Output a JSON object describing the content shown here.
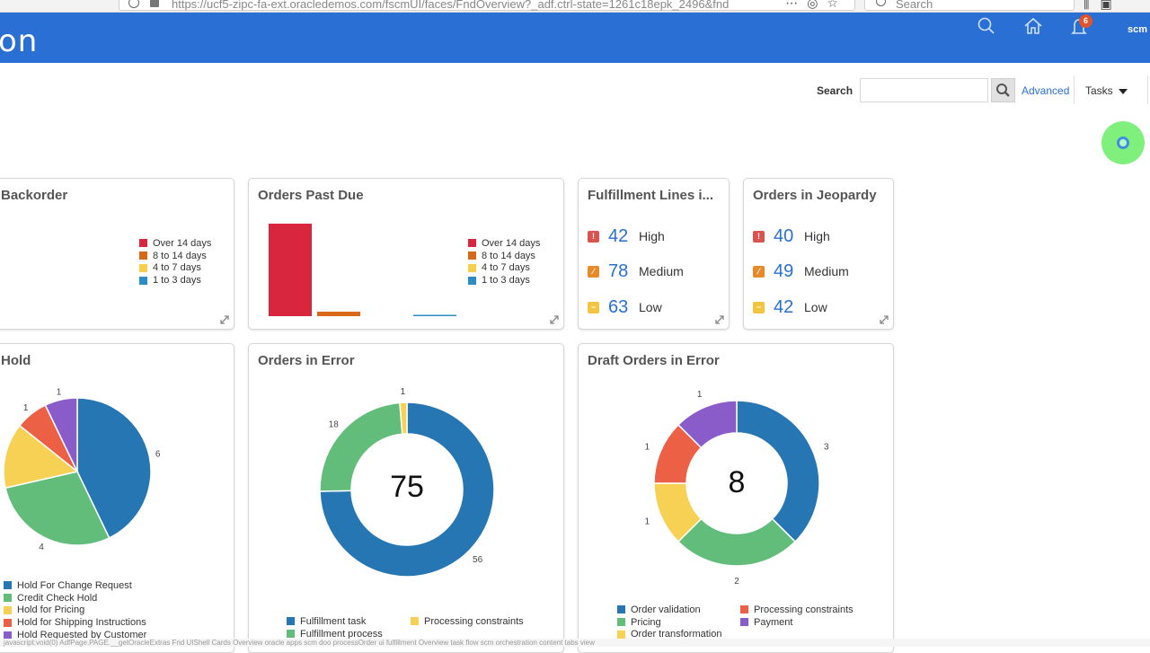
{
  "browser": {
    "url": "https://ucf5-zipc-fa-ext.oracledemos.com/fscmUI/faces/FndOverview?_adf.ctrl-state=1261c18epk_2496&fnd",
    "search_placeholder": "Search"
  },
  "header": {
    "title": "on",
    "notification_count": "6",
    "user": "scm"
  },
  "search": {
    "label": "Search",
    "value": "",
    "advanced": "Advanced",
    "tasks": "Tasks"
  },
  "cards": {
    "backorder": {
      "title": "Backorder",
      "legend": [
        "Over 14 days",
        "8 to 14 days",
        "4 to 7 days",
        "1 to 3 days"
      ]
    },
    "past_due": {
      "title": "Orders Past Due",
      "legend": [
        "Over 14 days",
        "8 to 14 days",
        "4 to 7 days",
        "1 to 3 days"
      ]
    },
    "fulfillment": {
      "title": "Fulfillment Lines i...",
      "rows": [
        {
          "count": "42",
          "label": "High",
          "icon": "high-severity-icon"
        },
        {
          "count": "78",
          "label": "Medium",
          "icon": "medium-severity-icon"
        },
        {
          "count": "63",
          "label": "Low",
          "icon": "low-severity-icon"
        }
      ]
    },
    "jeopardy": {
      "title": "Orders in Jeopardy",
      "rows": [
        {
          "count": "40",
          "label": "High",
          "icon": "high-severity-icon"
        },
        {
          "count": "49",
          "label": "Medium",
          "icon": "medium-severity-icon"
        },
        {
          "count": "42",
          "label": "Low",
          "icon": "low-severity-icon"
        }
      ]
    },
    "hold": {
      "title": "Hold",
      "legend": [
        "Hold For Change Request",
        "Credit Check Hold",
        "Hold for Pricing",
        "Hold for Shipping Instructions",
        "Hold Requested by Customer"
      ]
    },
    "errors": {
      "title": "Orders in Error",
      "total": "75",
      "legend": [
        "Fulfillment task",
        "Processing constraints",
        "Fulfillment process"
      ]
    },
    "draft_errors": {
      "title": "Draft Orders in Error",
      "total": "8",
      "legend": [
        "Order validation",
        "Processing constraints",
        "Pricing",
        "Payment",
        "Order transformation"
      ]
    }
  },
  "colors": {
    "over14": "#d9263f",
    "d8to14": "#d9691a",
    "d4to7": "#f7cf4a",
    "d1to3": "#2d8bc6",
    "blue": "#2576b3",
    "green": "#62bd7b",
    "yellow": "#f7d154",
    "red": "#ec6046",
    "purple": "#8a5cc9",
    "header": "#2a6fd3"
  },
  "chart_data": [
    {
      "type": "bar",
      "title": "Orders Past Due",
      "categories": [
        "Over 14 days",
        "8 to 14 days",
        "4 to 7 days",
        "1 to 3 days"
      ],
      "values": [
        41,
        2,
        0,
        0.3
      ],
      "ylim": [
        0,
        43
      ]
    },
    {
      "type": "pie",
      "title": "Hold",
      "categories": [
        "Hold For Change Request",
        "Credit Check Hold",
        "Hold for Pricing",
        "Hold for Shipping Instructions",
        "Hold Requested by Customer"
      ],
      "values": [
        6,
        4,
        2,
        1,
        1
      ],
      "value_labels": [
        "6",
        "4",
        "",
        "1",
        "1"
      ]
    },
    {
      "type": "pie",
      "title": "Orders in Error",
      "donut": true,
      "total": 75,
      "categories": [
        "Fulfillment task",
        "Fulfillment process",
        "Processing constraints"
      ],
      "values": [
        56,
        18,
        1
      ]
    },
    {
      "type": "pie",
      "title": "Draft Orders in Error",
      "donut": true,
      "total": 8,
      "categories": [
        "Order validation",
        "Pricing",
        "Processing constraints",
        "Order transformation",
        "Payment"
      ],
      "values": [
        3,
        2,
        1,
        1,
        1
      ]
    }
  ],
  "status": {
    "text": "javascript:void(0) AdfPage.PAGE.__getOracleExtras Fnd UIShell Cards Overview oracle apps scm doo processOrder ui fulfillment Overview task flow scm orchestration content tabs view"
  }
}
